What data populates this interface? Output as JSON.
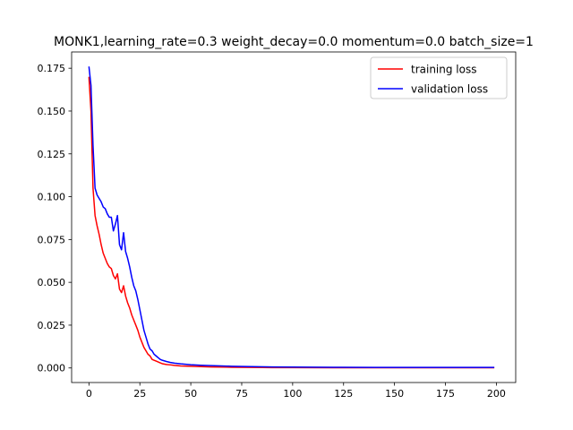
{
  "chart_data": {
    "type": "line",
    "title": "MONK1,learning_rate=0.3  weight_decay=0.0  momentum=0.0  batch_size=1",
    "xlabel": "",
    "ylabel": "",
    "xlim": [
      -8.5,
      209.5
    ],
    "ylim": [
      -0.0085,
      0.1845
    ],
    "xticks": [
      0,
      25,
      50,
      75,
      100,
      125,
      150,
      175,
      200
    ],
    "yticks": [
      0.0,
      0.025,
      0.05,
      0.075,
      0.1,
      0.125,
      0.15,
      0.175
    ],
    "ytick_labels": [
      "0.000",
      "0.025",
      "0.050",
      "0.075",
      "0.100",
      "0.125",
      "0.150",
      "0.175"
    ],
    "grid": false,
    "legend_position": "top-right",
    "series": [
      {
        "name": "training loss",
        "color": "#ff0000",
        "x": [
          0,
          1,
          2,
          3,
          4,
          5,
          6,
          7,
          8,
          9,
          10,
          11,
          12,
          13,
          14,
          15,
          16,
          17,
          18,
          19,
          20,
          21,
          22,
          23,
          24,
          25,
          26,
          27,
          28,
          29,
          30,
          31,
          32,
          33,
          34,
          35,
          36,
          38,
          40,
          42,
          45,
          50,
          55,
          60,
          70,
          80,
          90,
          100,
          120,
          140,
          160,
          180,
          199
        ],
        "y": [
          0.17,
          0.15,
          0.105,
          0.089,
          0.083,
          0.078,
          0.072,
          0.067,
          0.064,
          0.061,
          0.059,
          0.058,
          0.054,
          0.052,
          0.055,
          0.046,
          0.044,
          0.048,
          0.042,
          0.038,
          0.035,
          0.031,
          0.028,
          0.025,
          0.022,
          0.018,
          0.015,
          0.012,
          0.01,
          0.008,
          0.007,
          0.005,
          0.0045,
          0.004,
          0.0035,
          0.003,
          0.0025,
          0.002,
          0.0018,
          0.0015,
          0.0012,
          0.001,
          0.0008,
          0.0006,
          0.0004,
          0.0003,
          0.0002,
          0.0002,
          0.0001,
          0.0001,
          0.0001,
          0.0001,
          0.0001
        ]
      },
      {
        "name": "validation loss",
        "color": "#0000ff",
        "x": [
          0,
          1,
          2,
          3,
          4,
          5,
          6,
          7,
          8,
          9,
          10,
          11,
          12,
          13,
          14,
          15,
          16,
          17,
          18,
          19,
          20,
          21,
          22,
          23,
          24,
          25,
          26,
          27,
          28,
          29,
          30,
          31,
          32,
          33,
          34,
          35,
          36,
          38,
          40,
          42,
          45,
          50,
          55,
          60,
          70,
          80,
          90,
          100,
          120,
          140,
          160,
          180,
          199
        ],
        "y": [
          0.176,
          0.165,
          0.13,
          0.105,
          0.101,
          0.099,
          0.097,
          0.094,
          0.093,
          0.09,
          0.088,
          0.088,
          0.08,
          0.084,
          0.089,
          0.072,
          0.069,
          0.079,
          0.068,
          0.064,
          0.059,
          0.053,
          0.048,
          0.045,
          0.04,
          0.034,
          0.028,
          0.022,
          0.018,
          0.014,
          0.011,
          0.01,
          0.008,
          0.007,
          0.006,
          0.005,
          0.0045,
          0.0038,
          0.0032,
          0.0028,
          0.0024,
          0.0019,
          0.0016,
          0.0014,
          0.001,
          0.0008,
          0.0006,
          0.0005,
          0.0004,
          0.0003,
          0.0003,
          0.0003,
          0.0003
        ]
      }
    ]
  }
}
